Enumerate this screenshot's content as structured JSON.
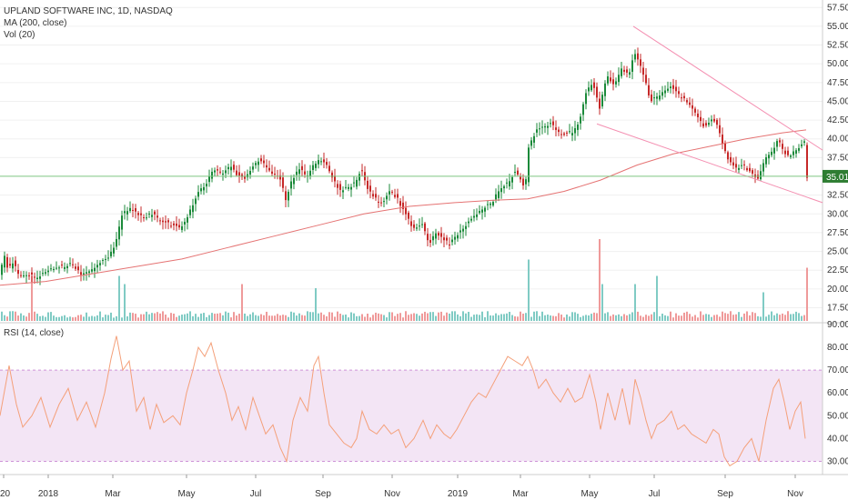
{
  "legend": {
    "title": "UPLAND SOFTWARE INC, 1D, NASDAQ",
    "ma": "MA (200, close)",
    "vol": "Vol (20)",
    "rsi": "RSI (14, close)"
  },
  "colors": {
    "up": "#26a69a",
    "down": "#ef5350",
    "candle_up": "#1b8a3a",
    "candle_down": "#c62828",
    "ma": "#e57373",
    "trend": "#f48fb1",
    "rsi_line": "#f4a07a",
    "rsi_band": "#f3e5f5",
    "last_price": "#2e7d32",
    "grid": "#f0f0f0"
  },
  "last_price_label": "35.01",
  "chart_data": [
    {
      "type": "candlestick",
      "title": "UPLAND SOFTWARE INC, 1D, NASDAQ",
      "yaxis_ticks": [
        "57.50",
        "55.00",
        "52.50",
        "50.00",
        "47.50",
        "45.00",
        "42.50",
        "40.00",
        "37.50",
        "35.00",
        "32.50",
        "30.00",
        "27.50",
        "25.00",
        "22.50",
        "20.00",
        "17.50"
      ],
      "ylim": [
        15.5,
        58.5
      ],
      "xaxis_ticks": [
        "20",
        "2018",
        "Mar",
        "May",
        "Jul",
        "Sep",
        "Nov",
        "2019",
        "Mar",
        "May",
        "Jul",
        "Sep",
        "Nov"
      ],
      "close_path": [
        [
          0,
          21.5
        ],
        [
          6,
          24.5
        ],
        [
          10,
          22.5
        ],
        [
          15,
          23.5
        ],
        [
          22,
          22.0
        ],
        [
          30,
          22.0
        ],
        [
          40,
          21.5
        ],
        [
          55,
          22.5
        ],
        [
          70,
          23.0
        ],
        [
          80,
          23.5
        ],
        [
          90,
          22.0
        ],
        [
          100,
          22.5
        ],
        [
          110,
          23.5
        ],
        [
          120,
          24.0
        ],
        [
          128,
          26.0
        ],
        [
          135,
          30.0
        ],
        [
          145,
          31.0
        ],
        [
          152,
          30.0
        ],
        [
          160,
          29.5
        ],
        [
          168,
          30.0
        ],
        [
          180,
          29.0
        ],
        [
          190,
          28.5
        ],
        [
          198,
          28.0
        ],
        [
          205,
          29.0
        ],
        [
          212,
          31.0
        ],
        [
          220,
          33.0
        ],
        [
          228,
          34.0
        ],
        [
          235,
          36.0
        ],
        [
          245,
          35.5
        ],
        [
          255,
          36.5
        ],
        [
          262,
          35.0
        ],
        [
          270,
          34.5
        ],
        [
          278,
          36.0
        ],
        [
          285,
          37.0
        ],
        [
          292,
          36.5
        ],
        [
          300,
          35.5
        ],
        [
          308,
          35.0
        ],
        [
          315,
          32.0
        ],
        [
          322,
          34.5
        ],
        [
          330,
          36.0
        ],
        [
          338,
          35.0
        ],
        [
          345,
          36.5
        ],
        [
          352,
          37.5
        ],
        [
          360,
          36.5
        ],
        [
          368,
          34.5
        ],
        [
          375,
          33.0
        ],
        [
          382,
          33.5
        ],
        [
          390,
          34.0
        ],
        [
          398,
          36.0
        ],
        [
          406,
          33.0
        ],
        [
          414,
          32.0
        ],
        [
          422,
          31.5
        ],
        [
          430,
          33.0
        ],
        [
          438,
          32.0
        ],
        [
          446,
          30.0
        ],
        [
          455,
          28.0
        ],
        [
          465,
          28.5
        ],
        [
          473,
          26.0
        ],
        [
          480,
          27.5
        ],
        [
          488,
          26.5
        ],
        [
          495,
          26.0
        ],
        [
          502,
          27.0
        ],
        [
          510,
          28.0
        ],
        [
          518,
          29.0
        ],
        [
          526,
          30.0
        ],
        [
          534,
          31.0
        ],
        [
          542,
          31.5
        ],
        [
          550,
          33.5
        ],
        [
          558,
          34.0
        ],
        [
          566,
          35.5
        ],
        [
          574,
          34.5
        ],
        [
          578,
          33.0
        ],
        [
          582,
          39.0
        ],
        [
          590,
          41.0
        ],
        [
          598,
          41.5
        ],
        [
          606,
          42.0
        ],
        [
          614,
          41.0
        ],
        [
          622,
          40.5
        ],
        [
          630,
          41.0
        ],
        [
          638,
          42.5
        ],
        [
          645,
          46.0
        ],
        [
          652,
          47.5
        ],
        [
          660,
          44.0
        ],
        [
          668,
          48.5
        ],
        [
          676,
          47.0
        ],
        [
          684,
          49.5
        ],
        [
          692,
          48.5
        ],
        [
          698,
          51.5
        ],
        [
          704,
          50.0
        ],
        [
          710,
          48.0
        ],
        [
          716,
          45.0
        ],
        [
          722,
          45.5
        ],
        [
          730,
          46.5
        ],
        [
          738,
          47.0
        ],
        [
          745,
          46.0
        ],
        [
          752,
          45.5
        ],
        [
          760,
          44.5
        ],
        [
          768,
          43.0
        ],
        [
          776,
          41.5
        ],
        [
          784,
          42.5
        ],
        [
          790,
          41.5
        ],
        [
          796,
          39.0
        ],
        [
          802,
          37.0
        ],
        [
          810,
          36.0
        ],
        [
          818,
          36.5
        ],
        [
          826,
          35.5
        ],
        [
          834,
          34.5
        ],
        [
          842,
          37.5
        ],
        [
          850,
          38.5
        ],
        [
          856,
          40.0
        ],
        [
          862,
          38.5
        ],
        [
          868,
          37.5
        ],
        [
          874,
          38.5
        ],
        [
          880,
          39.0
        ],
        [
          885,
          39.5
        ],
        [
          888,
          35.0
        ]
      ],
      "ma_200": [
        [
          0,
          20.5
        ],
        [
          50,
          21.0
        ],
        [
          100,
          22.0
        ],
        [
          150,
          23.0
        ],
        [
          200,
          24.0
        ],
        [
          250,
          25.5
        ],
        [
          300,
          27.0
        ],
        [
          350,
          28.5
        ],
        [
          400,
          30.0
        ],
        [
          450,
          31.0
        ],
        [
          500,
          31.5
        ],
        [
          540,
          31.8
        ],
        [
          580,
          32.0
        ],
        [
          620,
          33.0
        ],
        [
          660,
          34.5
        ],
        [
          700,
          36.5
        ],
        [
          740,
          38.0
        ],
        [
          780,
          39.0
        ],
        [
          820,
          40.0
        ],
        [
          860,
          40.8
        ],
        [
          886,
          41.2
        ]
      ],
      "last_price": 35.01,
      "trendlines": [
        {
          "from": [
            696,
            55.0
          ],
          "to": [
            904,
            38.5
          ]
        },
        {
          "from": [
            656,
            42.0
          ],
          "to": [
            904,
            31.5
          ]
        }
      ]
    },
    {
      "type": "bar",
      "title": "Vol (20)",
      "peaks": [
        {
          "x": 34,
          "v": 0.55
        },
        {
          "x": 130,
          "v": 0.55
        },
        {
          "x": 135,
          "v": 0.45
        },
        {
          "x": 265,
          "v": 0.45
        },
        {
          "x": 347,
          "v": 0.4
        },
        {
          "x": 580,
          "v": 0.75
        },
        {
          "x": 658,
          "v": 1.0
        },
        {
          "x": 660,
          "v": 0.45
        },
        {
          "x": 697,
          "v": 0.45
        },
        {
          "x": 722,
          "v": 0.55
        },
        {
          "x": 838,
          "v": 0.35
        },
        {
          "x": 887,
          "v": 0.65
        }
      ]
    },
    {
      "type": "line",
      "title": "RSI (14, close)",
      "yaxis_ticks": [
        "90.00",
        "80.00",
        "70.00",
        "60.00",
        "50.00",
        "40.00",
        "30.00"
      ],
      "ylim": [
        25,
        90
      ],
      "band": [
        30,
        70
      ],
      "values": [
        [
          0,
          50
        ],
        [
          10,
          72
        ],
        [
          18,
          55
        ],
        [
          25,
          45
        ],
        [
          35,
          50
        ],
        [
          45,
          58
        ],
        [
          55,
          45
        ],
        [
          65,
          55
        ],
        [
          75,
          62
        ],
        [
          85,
          48
        ],
        [
          95,
          56
        ],
        [
          105,
          45
        ],
        [
          115,
          60
        ],
        [
          122,
          75
        ],
        [
          128,
          85
        ],
        [
          135,
          70
        ],
        [
          142,
          74
        ],
        [
          150,
          52
        ],
        [
          158,
          58
        ],
        [
          165,
          44
        ],
        [
          172,
          55
        ],
        [
          180,
          47
        ],
        [
          190,
          50
        ],
        [
          198,
          46
        ],
        [
          205,
          60
        ],
        [
          212,
          70
        ],
        [
          218,
          80
        ],
        [
          225,
          76
        ],
        [
          232,
          82
        ],
        [
          240,
          70
        ],
        [
          248,
          60
        ],
        [
          255,
          48
        ],
        [
          262,
          54
        ],
        [
          270,
          44
        ],
        [
          278,
          58
        ],
        [
          285,
          50
        ],
        [
          292,
          42
        ],
        [
          300,
          46
        ],
        [
          308,
          36
        ],
        [
          315,
          30
        ],
        [
          322,
          48
        ],
        [
          330,
          58
        ],
        [
          338,
          52
        ],
        [
          345,
          72
        ],
        [
          350,
          76
        ],
        [
          356,
          60
        ],
        [
          362,
          46
        ],
        [
          370,
          42
        ],
        [
          378,
          38
        ],
        [
          386,
          36
        ],
        [
          392,
          40
        ],
        [
          398,
          52
        ],
        [
          406,
          44
        ],
        [
          414,
          42
        ],
        [
          422,
          46
        ],
        [
          430,
          42
        ],
        [
          438,
          44
        ],
        [
          446,
          36
        ],
        [
          455,
          40
        ],
        [
          465,
          48
        ],
        [
          473,
          40
        ],
        [
          480,
          46
        ],
        [
          488,
          42
        ],
        [
          495,
          40
        ],
        [
          502,
          44
        ],
        [
          510,
          50
        ],
        [
          518,
          56
        ],
        [
          526,
          60
        ],
        [
          534,
          58
        ],
        [
          542,
          64
        ],
        [
          550,
          70
        ],
        [
          558,
          76
        ],
        [
          566,
          74
        ],
        [
          574,
          72
        ],
        [
          580,
          76
        ],
        [
          586,
          70
        ],
        [
          592,
          62
        ],
        [
          600,
          66
        ],
        [
          608,
          60
        ],
        [
          616,
          56
        ],
        [
          624,
          62
        ],
        [
          632,
          56
        ],
        [
          640,
          58
        ],
        [
          648,
          68
        ],
        [
          655,
          56
        ],
        [
          660,
          44
        ],
        [
          668,
          60
        ],
        [
          676,
          48
        ],
        [
          684,
          62
        ],
        [
          692,
          46
        ],
        [
          698,
          66
        ],
        [
          704,
          58
        ],
        [
          710,
          48
        ],
        [
          716,
          40
        ],
        [
          722,
          46
        ],
        [
          730,
          48
        ],
        [
          738,
          52
        ],
        [
          745,
          44
        ],
        [
          752,
          46
        ],
        [
          760,
          42
        ],
        [
          768,
          40
        ],
        [
          776,
          38
        ],
        [
          784,
          44
        ],
        [
          790,
          42
        ],
        [
          796,
          32
        ],
        [
          802,
          28
        ],
        [
          810,
          30
        ],
        [
          818,
          36
        ],
        [
          826,
          40
        ],
        [
          834,
          30
        ],
        [
          842,
          48
        ],
        [
          850,
          62
        ],
        [
          856,
          66
        ],
        [
          862,
          56
        ],
        [
          868,
          44
        ],
        [
          874,
          52
        ],
        [
          880,
          56
        ],
        [
          885,
          40
        ]
      ]
    }
  ]
}
